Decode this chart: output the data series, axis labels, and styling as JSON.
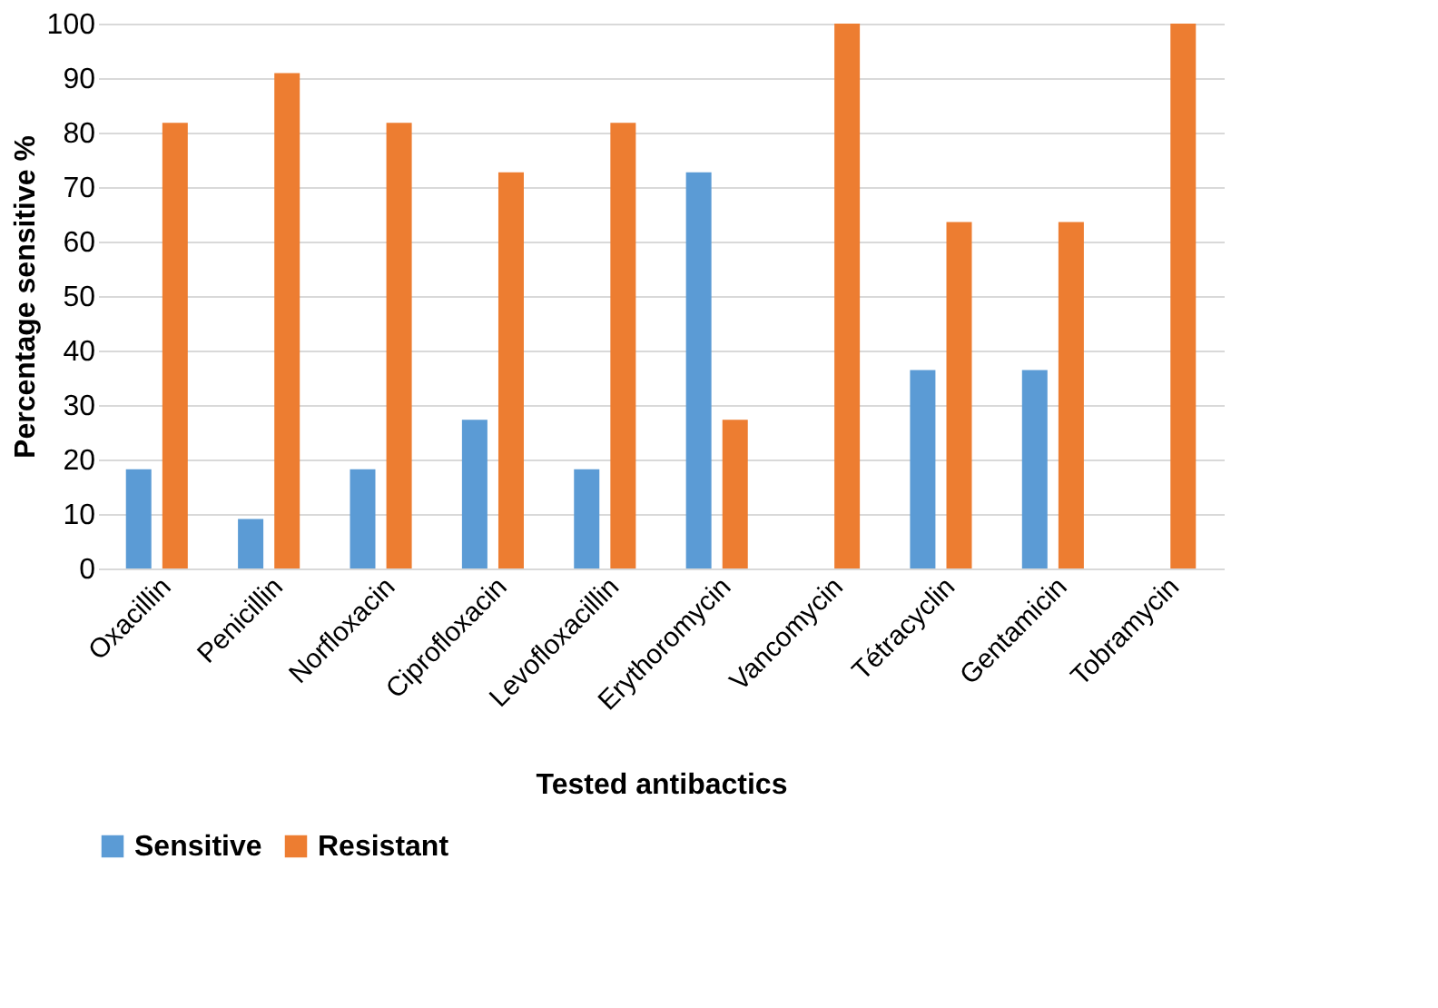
{
  "chart_data": {
    "type": "bar",
    "xlabel": "Tested antibactics",
    "ylabel": "Percentage sensitive %",
    "categories": [
      "Oxacillin",
      "Penicillin",
      "Norfloxacin",
      "Ciprofloxacin",
      "Levofloxacillin",
      "Erythoromycin",
      "Vancomycin",
      "Tétracyclin",
      "Gentamicin",
      "Tobramycin"
    ],
    "series": [
      {
        "name": "Sensitive",
        "color": "#5b9bd5",
        "values": [
          18.2,
          9.1,
          18.2,
          27.3,
          18.2,
          72.7,
          0,
          36.4,
          36.4,
          0
        ]
      },
      {
        "name": "Resistant",
        "color": "#ed7d31",
        "values": [
          81.8,
          90.9,
          81.8,
          72.7,
          81.8,
          27.3,
          100,
          63.6,
          63.6,
          100
        ]
      }
    ],
    "ylim": [
      0,
      100
    ],
    "yticks": [
      0,
      10,
      20,
      30,
      40,
      50,
      60,
      70,
      80,
      90,
      100
    ],
    "grid": "y",
    "legend": "bottom"
  }
}
